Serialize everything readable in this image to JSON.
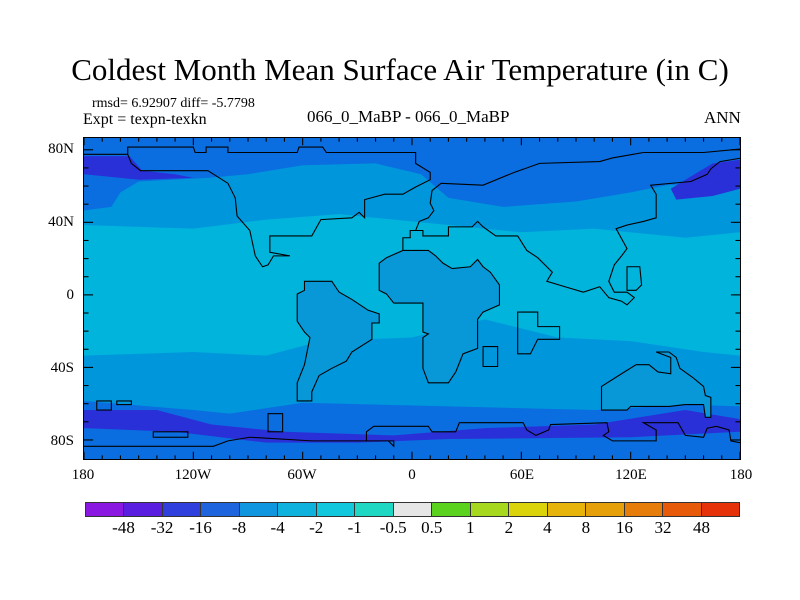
{
  "title": "Coldest Month Mean Surface Air Temperature (in C)",
  "stats": "rmsd= 6.92907 diff= -5.7798",
  "experiment": "Expt = texpn-texkn",
  "comparison": "066_0_MaBP - 066_0_MaBP",
  "season": "ANN",
  "y_labels": [
    "80N",
    "40N",
    "0",
    "40S",
    "80S"
  ],
  "x_labels": [
    "180",
    "120W",
    "60W",
    "0",
    "60E",
    "120E",
    "180"
  ],
  "colorbar": {
    "levels": [
      "-48",
      "-32",
      "-16",
      "-8",
      "-4",
      "-2",
      "-1",
      "-0.5",
      "0.5",
      "1",
      "2",
      "4",
      "8",
      "16",
      "32",
      "48"
    ],
    "colors": [
      "#8a18e0",
      "#5a1ee0",
      "#3040dc",
      "#1e64dc",
      "#0f96de",
      "#0fb2dc",
      "#12c8dc",
      "#1ed8c4",
      "#e6e6e6",
      "#5ad21e",
      "#a6d81e",
      "#dcd40a",
      "#e6b40a",
      "#e6a00a",
      "#e67d0a",
      "#e65a0a",
      "#e6320a"
    ]
  },
  "map_colors": {
    "cyan": "#00b4dc",
    "medium": "#0096dc",
    "blue": "#0a6ee0",
    "dark": "#2a30d8"
  }
}
